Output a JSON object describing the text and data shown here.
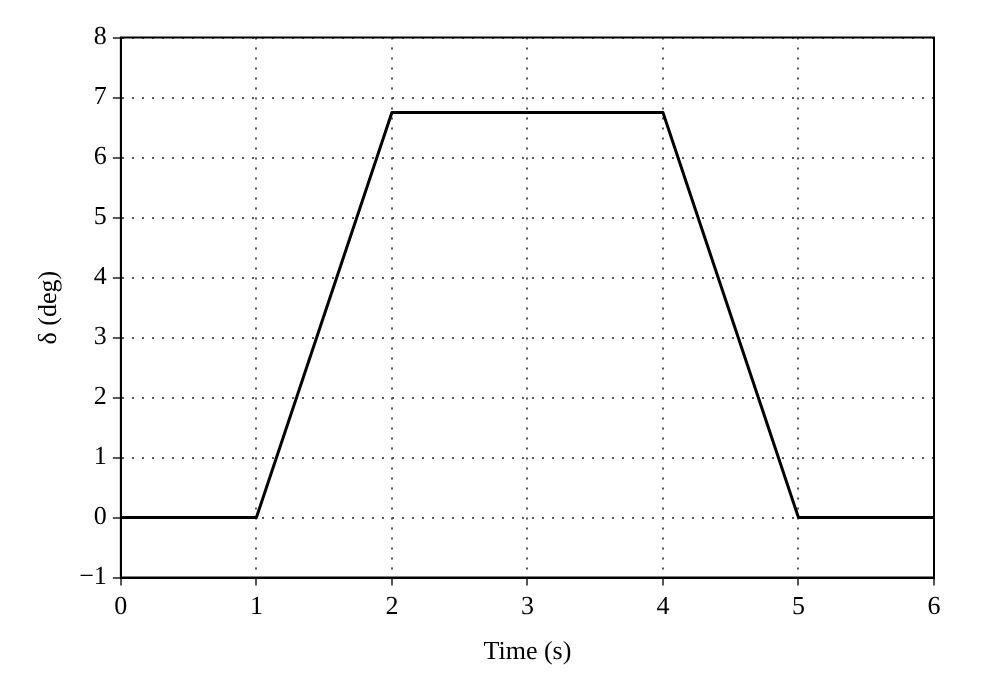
{
  "chart_data": {
    "type": "line",
    "xlabel": "Time (s)",
    "ylabel": "δ (deg)",
    "x": [
      0,
      1,
      2,
      4,
      5,
      6
    ],
    "series": [
      {
        "color": "#000000",
        "values": [
          0,
          0,
          6.75,
          6.75,
          0,
          0
        ]
      }
    ],
    "xlim": [
      0,
      6
    ],
    "xticks": [
      0,
      1,
      2,
      3,
      4,
      5,
      6
    ],
    "ylim": [
      -1,
      8
    ],
    "yticks": [
      -1,
      0,
      1,
      2,
      3,
      4,
      5,
      6,
      7,
      8
    ],
    "grid": true,
    "legend": false,
    "marker": "none",
    "line_style": "solid"
  }
}
